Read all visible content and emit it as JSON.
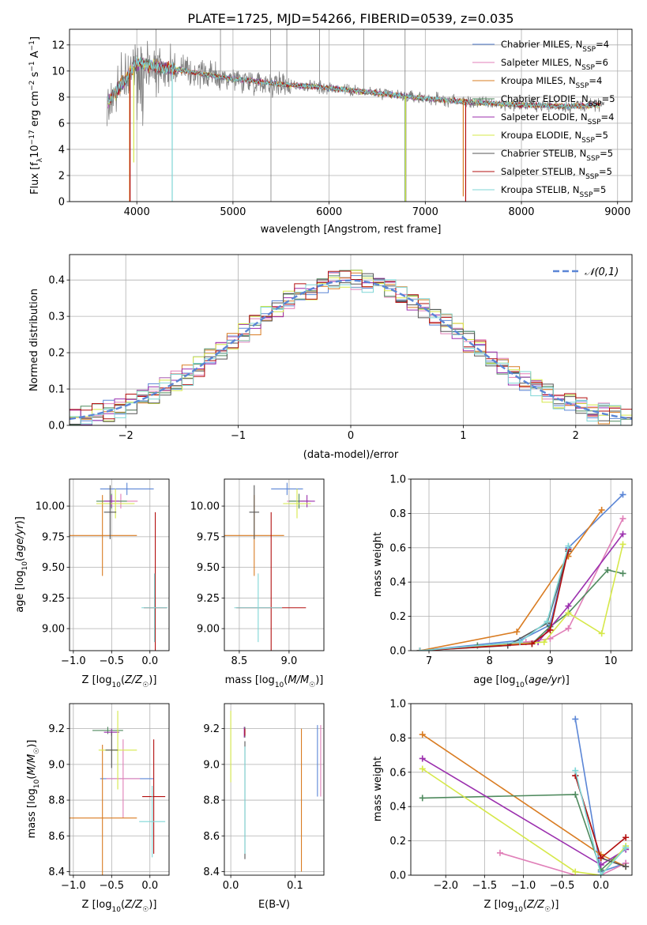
{
  "figure": {
    "title": "PLATE=1725, MJD=54266, FIBERID=0539, z=0.035"
  },
  "models": [
    {
      "name": "Chabrier MILES",
      "nssp": "4",
      "color": "#5b86d6"
    },
    {
      "name": "Salpeter MILES",
      "nssp": "6",
      "color": "#e07fb8"
    },
    {
      "name": "Kroupa MILES",
      "nssp": "4",
      "color": "#d97c22"
    },
    {
      "name": "Chabrier ELODIE",
      "nssp": "5",
      "color": "#4f8a5e"
    },
    {
      "name": "Salpeter ELODIE",
      "nssp": "4",
      "color": "#9b2fae"
    },
    {
      "name": "Kroupa ELODIE",
      "nssp": "5",
      "color": "#d6e84a"
    },
    {
      "name": "Chabrier STELIB",
      "nssp": "5",
      "color": "#555555"
    },
    {
      "name": "Salpeter STELIB",
      "nssp": "5",
      "color": "#b30f0f"
    },
    {
      "name": "Kroupa STELIB",
      "nssp": "5",
      "color": "#7fd6d6"
    }
  ],
  "chart_data": [
    {
      "id": "spectrum",
      "type": "line",
      "xlabel": "wavelength [Angstrom, rest frame]",
      "ylabel": "Flux [f_λ10^{-17} erg cm^{-2} s^{-1} A^{-1}]",
      "xlim": [
        3300,
        9150
      ],
      "ylim": [
        0,
        13.2
      ],
      "xticks": [
        4000,
        5000,
        6000,
        7000,
        8000,
        9000
      ],
      "yticks": [
        0,
        2,
        4,
        6,
        8,
        10,
        12
      ],
      "legend_position": "top-right",
      "observed_color": "#808080",
      "observed_range": [
        3690,
        8860
      ],
      "model_range": [
        3700,
        8820
      ],
      "continuum": [
        [
          3700,
          7.6
        ],
        [
          4000,
          10.6
        ],
        [
          4500,
          10.0
        ],
        [
          5000,
          9.4
        ],
        [
          5500,
          9.0
        ],
        [
          6000,
          8.7
        ],
        [
          6500,
          8.3
        ],
        [
          7000,
          7.9
        ],
        [
          7500,
          7.6
        ],
        [
          8000,
          7.4
        ],
        [
          8500,
          7.3
        ],
        [
          8820,
          7.4
        ]
      ],
      "drops": [
        {
          "model": 2,
          "x": 3925,
          "to": 0
        },
        {
          "model": 7,
          "x": 3930,
          "to": 0
        },
        {
          "model": 8,
          "x": 4368,
          "to": 0
        },
        {
          "model": 5,
          "x": 3968,
          "to": 3.0
        },
        {
          "model": 3,
          "x": 6790,
          "to": 0
        },
        {
          "model": 5,
          "x": 6795,
          "to": 0
        },
        {
          "model": 2,
          "x": 7395,
          "to": 0.4
        },
        {
          "model": 7,
          "x": 7420,
          "to": 0
        }
      ],
      "observed_spikes": [
        [
          4200,
          13.2
        ],
        [
          4870,
          13.2
        ],
        [
          5390,
          13.2
        ],
        [
          5395,
          0
        ],
        [
          5560,
          13.2
        ],
        [
          5900,
          13.2
        ],
        [
          6360,
          13.2
        ],
        [
          6790,
          13.2
        ],
        [
          6800,
          0
        ]
      ]
    },
    {
      "id": "residuals",
      "type": "line",
      "xlabel": "(data-model)/error",
      "ylabel": "Normed distribution",
      "xlim": [
        -2.5,
        2.5
      ],
      "ylim": [
        0,
        0.47
      ],
      "xticks": [
        -2,
        -1,
        0,
        1,
        2
      ],
      "yticks": [
        0.0,
        0.1,
        0.2,
        0.3,
        0.4
      ],
      "reference": {
        "label": "𝒩(0,1)",
        "color": "#5b86d6"
      },
      "bin_width": 0.1,
      "legend_position": "top-right"
    },
    {
      "id": "age-vs-Z",
      "type": "scatter",
      "xlabel": "Z [log₁₀(Z/Z☉)]",
      "ylabel": "age  [log₁₀(age/yr)]",
      "xlim": [
        -1.05,
        0.25
      ],
      "ylim": [
        8.82,
        10.22
      ],
      "xticks": [
        -1.0,
        -0.5,
        0.0
      ],
      "yticks": [
        9.0,
        9.25,
        9.5,
        9.75,
        10.0
      ],
      "points": [
        {
          "model": 0,
          "x": -0.3,
          "xerr": 0.35,
          "y": 10.14,
          "yerr": 0.05
        },
        {
          "model": 1,
          "x": -0.38,
          "xerr": 0.22,
          "y": 10.04,
          "yerr": 0.06
        },
        {
          "model": 2,
          "x": -0.62,
          "xerr": 0.45,
          "y": 9.76,
          "yerr": 0.33
        },
        {
          "model": 3,
          "x": -0.5,
          "xerr": 0.2,
          "y": 10.04,
          "yerr": 0.06
        },
        {
          "model": 4,
          "x": -0.5,
          "xerr": 0.1,
          "y": 10.04,
          "yerr": 0.05
        },
        {
          "model": 5,
          "x": -0.45,
          "xerr": 0.25,
          "y": 10.02,
          "yerr": 0.12
        },
        {
          "model": 6,
          "x": -0.52,
          "xerr": 0.08,
          "y": 9.95,
          "yerr": 0.22
        },
        {
          "model": 7,
          "x": 0.07,
          "xerr": 0.15,
          "y": 9.17,
          "yerr": 0.78
        },
        {
          "model": 8,
          "x": 0.06,
          "xerr": 0.17,
          "y": 9.17,
          "yerr": 0.28
        }
      ]
    },
    {
      "id": "age-vs-mass",
      "type": "scatter",
      "xlabel": "mass [log₁₀(M/M☉)]",
      "ylabel": "",
      "xlim": [
        8.35,
        9.35
      ],
      "ylim": [
        8.82,
        10.22
      ],
      "xticks": [
        8.5,
        9.0
      ],
      "yticks": [
        9.0,
        9.25,
        9.5,
        9.75,
        10.0
      ],
      "points": [
        {
          "model": 0,
          "x": 8.98,
          "xerr": 0.16,
          "y": 10.14,
          "yerr": 0.05
        },
        {
          "model": 1,
          "x": 9.1,
          "xerr": 0.12,
          "y": 10.04,
          "yerr": 0.06
        },
        {
          "model": 2,
          "x": 8.65,
          "xerr": 0.3,
          "y": 9.76,
          "yerr": 0.33
        },
        {
          "model": 3,
          "x": 9.1,
          "xerr": 0.1,
          "y": 10.04,
          "yerr": 0.06
        },
        {
          "model": 4,
          "x": 9.18,
          "xerr": 0.08,
          "y": 10.04,
          "yerr": 0.05
        },
        {
          "model": 5,
          "x": 9.08,
          "xerr": 0.14,
          "y": 10.02,
          "yerr": 0.12
        },
        {
          "model": 6,
          "x": 8.65,
          "xerr": 0.05,
          "y": 9.95,
          "yerr": 0.22
        },
        {
          "model": 7,
          "x": 8.82,
          "xerr": 0.35,
          "y": 9.17,
          "yerr": 0.78
        },
        {
          "model": 8,
          "x": 8.69,
          "xerr": 0.24,
          "y": 9.17,
          "yerr": 0.28
        }
      ]
    },
    {
      "id": "weight-vs-age",
      "type": "line",
      "xlabel": "age  [log₁₀(age/yr)]",
      "ylabel": "mass weight",
      "xlim": [
        6.7,
        10.35
      ],
      "ylim": [
        0,
        1.0
      ],
      "xticks": [
        7,
        8,
        9,
        10
      ],
      "yticks": [
        0.0,
        0.2,
        0.4,
        0.6,
        0.8,
        1.0
      ],
      "series": [
        {
          "model": 0,
          "x": [
            6.85,
            8.5,
            9.0,
            9.3,
            10.2
          ],
          "y": [
            0.0,
            0.06,
            0.15,
            0.6,
            0.91
          ]
        },
        {
          "model": 1,
          "x": [
            6.85,
            8.6,
            9.0,
            9.3,
            10.2
          ],
          "y": [
            0.0,
            0.05,
            0.07,
            0.13,
            0.77
          ]
        },
        {
          "model": 2,
          "x": [
            6.85,
            8.45,
            9.3,
            9.85
          ],
          "y": [
            0.0,
            0.11,
            0.55,
            0.82
          ]
        },
        {
          "model": 3,
          "x": [
            7.8,
            8.7,
            9.0,
            9.3,
            9.95,
            10.2
          ],
          "y": [
            0.03,
            0.04,
            0.14,
            0.22,
            0.47,
            0.45
          ]
        },
        {
          "model": 4,
          "x": [
            6.85,
            8.8,
            9.3,
            10.2
          ],
          "y": [
            0.0,
            0.05,
            0.26,
            0.68
          ]
        },
        {
          "model": 5,
          "x": [
            6.85,
            8.9,
            9.3,
            9.85,
            10.2
          ],
          "y": [
            0.0,
            0.05,
            0.22,
            0.1,
            0.62
          ]
        },
        {
          "model": 6,
          "x": [
            6.85,
            8.3,
            8.95,
            9.3
          ],
          "y": [
            0.0,
            0.03,
            0.16,
            0.58
          ]
        },
        {
          "model": 7,
          "x": [
            6.85,
            8.7,
            9.0,
            9.3
          ],
          "y": [
            0.0,
            0.04,
            0.12,
            0.59
          ]
        },
        {
          "model": 8,
          "x": [
            6.85,
            8.5,
            8.95,
            9.3
          ],
          "y": [
            0.0,
            0.05,
            0.17,
            0.61
          ]
        }
      ]
    },
    {
      "id": "mass-vs-Z",
      "type": "scatter",
      "xlabel": "Z [log₁₀(Z/Z☉)]",
      "ylabel": "mass [log₁₀(M/M☉)]",
      "xlim": [
        -1.05,
        0.25
      ],
      "ylim": [
        8.38,
        9.34
      ],
      "xticks": [
        -1.0,
        -0.5,
        0.0
      ],
      "yticks": [
        8.4,
        8.6,
        8.8,
        9.0,
        9.2
      ],
      "points": [
        {
          "model": 0,
          "x": -0.3,
          "xerr": 0.35,
          "y": 8.92,
          "yerr": 0.0
        },
        {
          "model": 1,
          "x": -0.35,
          "xerr": 0.22,
          "y": 8.92,
          "yerr": 0.22
        },
        {
          "model": 2,
          "x": -0.62,
          "xerr": 0.45,
          "y": 8.7,
          "yerr": 0.41
        },
        {
          "model": 3,
          "x": -0.55,
          "xerr": 0.2,
          "y": 9.19,
          "yerr": 0.02
        },
        {
          "model": 4,
          "x": -0.5,
          "xerr": 0.1,
          "y": 9.18,
          "yerr": 0.02
        },
        {
          "model": 5,
          "x": -0.42,
          "xerr": 0.25,
          "y": 9.08,
          "yerr": 0.22
        },
        {
          "model": 6,
          "x": -0.5,
          "xerr": 0.08,
          "y": 9.08,
          "yerr": 0.1
        },
        {
          "model": 7,
          "x": 0.05,
          "xerr": 0.15,
          "y": 8.82,
          "yerr": 0.32
        },
        {
          "model": 8,
          "x": 0.03,
          "xerr": 0.17,
          "y": 8.68,
          "yerr": 0.2
        }
      ]
    },
    {
      "id": "mass-vs-EBV",
      "type": "scatter",
      "xlabel": "E(B-V)",
      "ylabel": "",
      "xlim": [
        -0.01,
        0.145
      ],
      "ylim": [
        8.38,
        9.34
      ],
      "xticks": [
        0.0,
        0.1
      ],
      "yticks": [
        8.4,
        8.6,
        8.8,
        9.0,
        9.2
      ],
      "points": [
        {
          "model": 0,
          "x": 0.135,
          "xerr": 0.0,
          "y": 9.02,
          "yerr": 0.2
        },
        {
          "model": 1,
          "x": 0.14,
          "xerr": 0.0,
          "y": 9.02,
          "yerr": 0.2
        },
        {
          "model": 2,
          "x": 0.11,
          "xerr": 0.0,
          "y": 8.8,
          "yerr": 0.4
        },
        {
          "model": 3,
          "x": 0.022,
          "xerr": 0.0,
          "y": 9.18,
          "yerr": 0.03
        },
        {
          "model": 4,
          "x": 0.021,
          "xerr": 0.0,
          "y": 9.18,
          "yerr": 0.03
        },
        {
          "model": 5,
          "x": 0.0,
          "xerr": 0.0,
          "y": 9.1,
          "yerr": 0.2
        },
        {
          "model": 6,
          "x": 0.022,
          "xerr": 0.0,
          "y": 8.8,
          "yerr": 0.33
        },
        {
          "model": 7,
          "x": 0.022,
          "xerr": 0.0,
          "y": 9.18,
          "yerr": 0.02
        },
        {
          "model": 8,
          "x": 0.022,
          "xerr": 0.0,
          "y": 8.8,
          "yerr": 0.3
        }
      ]
    },
    {
      "id": "weight-vs-Z",
      "type": "line",
      "xlabel": "Z [log₁₀(Z/Z☉)]",
      "ylabel": "mass weight",
      "xlim": [
        -2.45,
        0.4
      ],
      "ylim": [
        0,
        1.0
      ],
      "xticks": [
        -2.0,
        -1.5,
        -1.0,
        -0.5,
        0.0
      ],
      "yticks": [
        0.0,
        0.2,
        0.4,
        0.6,
        0.8,
        1.0
      ],
      "series": [
        {
          "model": 0,
          "x": [
            -0.33,
            0.0,
            0.32
          ],
          "y": [
            0.91,
            0.02,
            0.07
          ]
        },
        {
          "model": 1,
          "x": [
            -1.3,
            -0.33,
            0.0,
            0.32
          ],
          "y": [
            0.13,
            0.0,
            0.0,
            0.07
          ]
        },
        {
          "model": 2,
          "x": [
            -2.3,
            0.0,
            0.32
          ],
          "y": [
            0.82,
            0.12,
            0.05
          ]
        },
        {
          "model": 3,
          "x": [
            -2.3,
            -0.33,
            0.0,
            0.32
          ],
          "y": [
            0.45,
            0.47,
            0.03,
            0.16
          ]
        },
        {
          "model": 4,
          "x": [
            -2.3,
            0.0,
            0.32
          ],
          "y": [
            0.68,
            0.06,
            0.15
          ]
        },
        {
          "model": 5,
          "x": [
            -2.3,
            -0.33,
            0.0,
            0.32
          ],
          "y": [
            0.62,
            0.02,
            0.0,
            0.17
          ]
        },
        {
          "model": 6,
          "x": [
            -0.33,
            0.0,
            0.32
          ],
          "y": [
            0.58,
            0.1,
            0.05
          ]
        },
        {
          "model": 7,
          "x": [
            -0.33,
            0.0,
            0.32
          ],
          "y": [
            0.58,
            0.1,
            0.22
          ]
        },
        {
          "model": 8,
          "x": [
            -0.33,
            0.0,
            0.32
          ],
          "y": [
            0.61,
            0.0,
            0.16
          ]
        }
      ]
    }
  ]
}
